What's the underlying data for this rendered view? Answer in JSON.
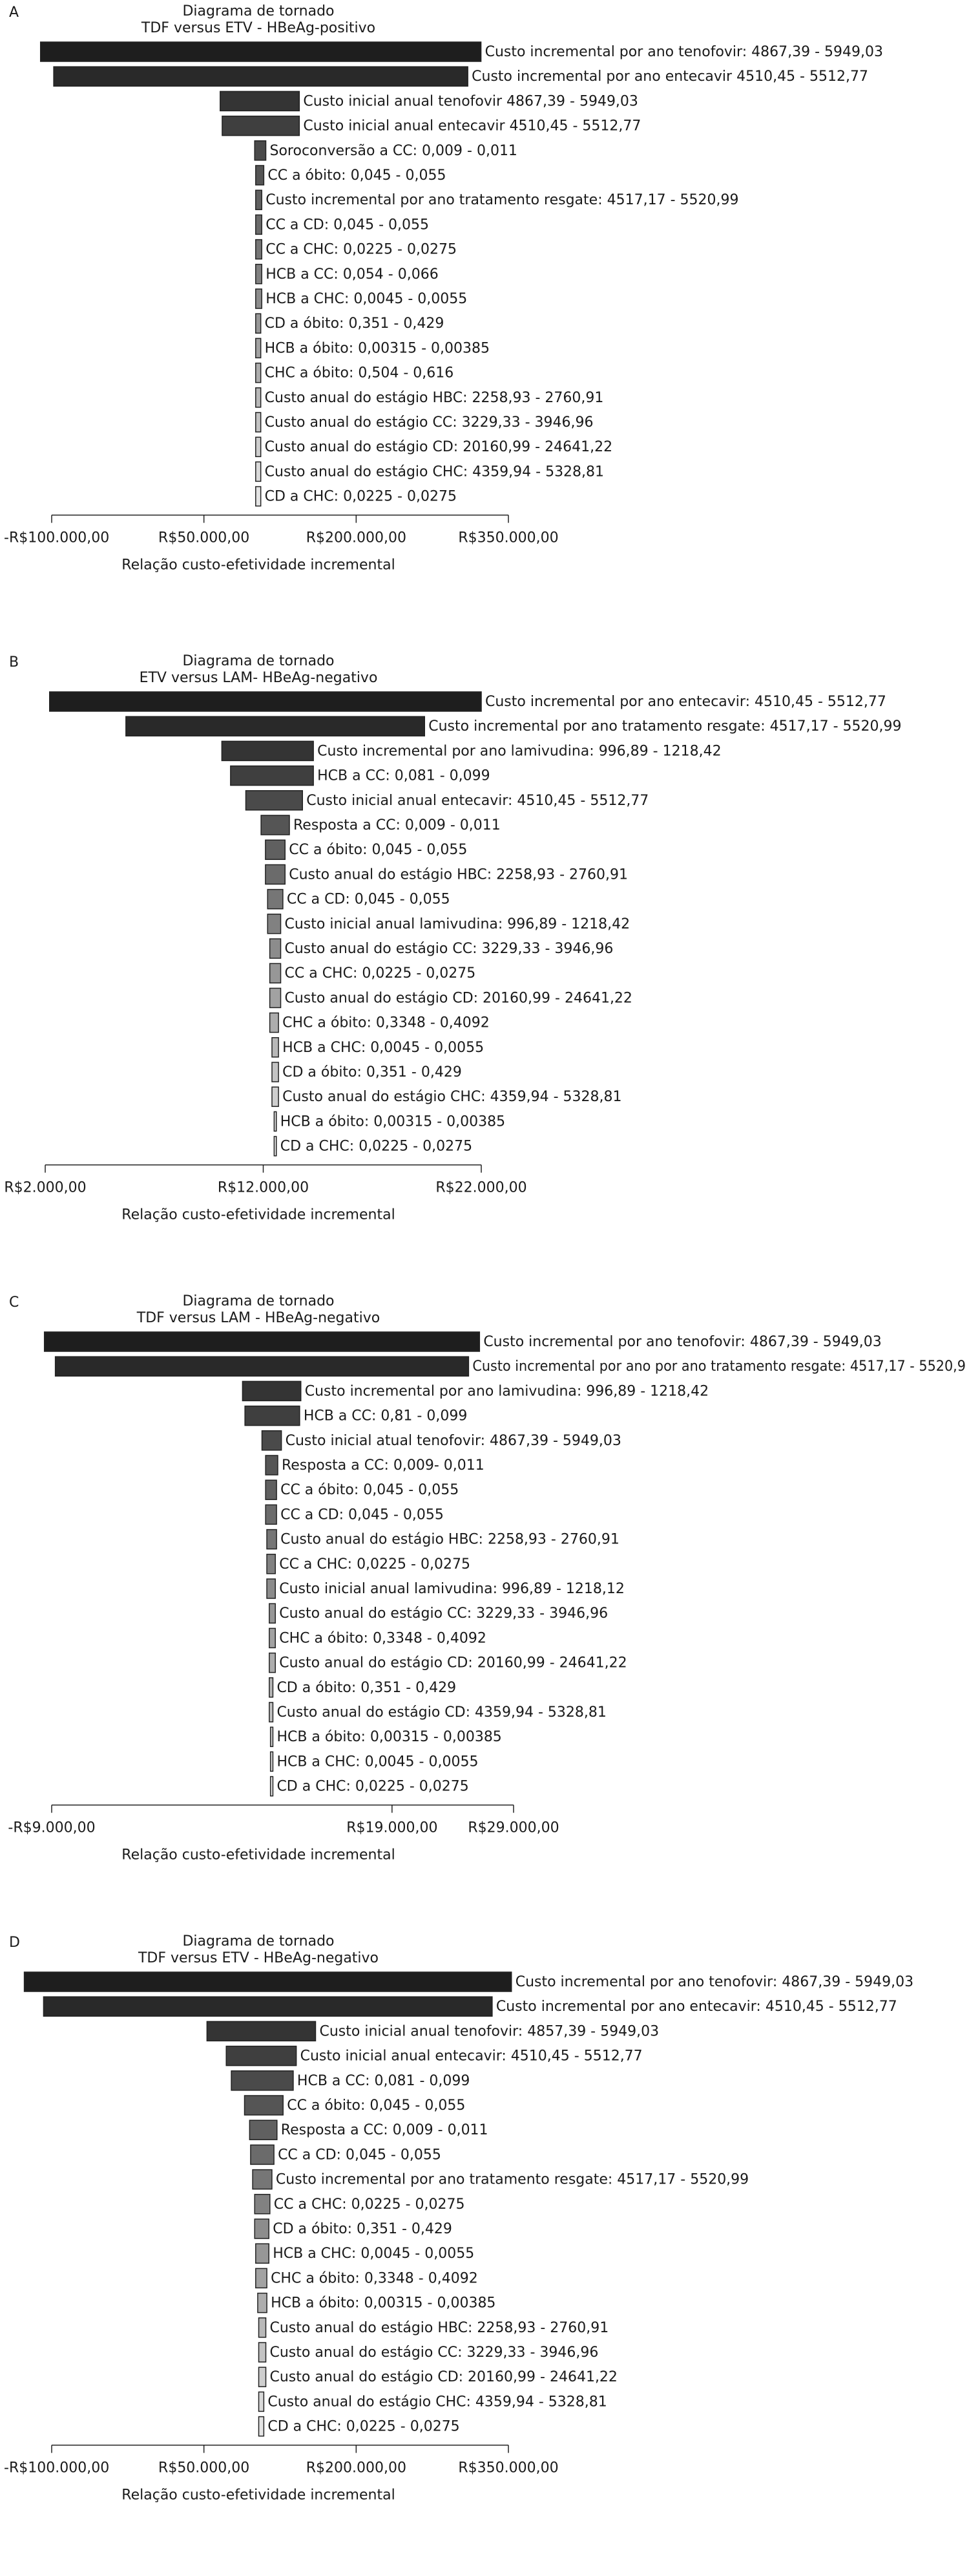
{
  "chart_data": [
    {
      "type": "tornado",
      "panel": "A",
      "title": "Diagrama de tornado",
      "subtitle": "TDF versus ETV - HBeAg-positivo",
      "xlabel": "Relação custo-efetividade incremental",
      "categories": [
        "Custo incremental por ano tenofovir: 4867,39 - 5949,03",
        "Custo incremental por ano entecavir 4510,45 - 5512,77",
        "Custo inicial anual tenofovir 4867,39 - 5949,03",
        "Custo inicial anual entecavir 4510,45 - 5512,77",
        "Soroconversão a CC: 0,009 - 0,011",
        "CC a óbito: 0,045 - 0,055",
        "Custo incremental por ano tratamento resgate: 4517,17 - 5520,99",
        "CC a CD: 0,045 - 0,055",
        "CC a CHC: 0,0225 - 0,0275",
        "HCB a CC: 0,054 - 0,066",
        "HCB a CHC: 0,0045 - 0,0055",
        "CD a óbito: 0,351 - 0,429",
        "HCB a óbito: 0,00315 - 0,00385",
        "CHC a óbito: 0,504 - 0,616",
        "Custo anual do estágio HBC: 2258,93 - 2760,91",
        "Custo anual do estágio CC: 3229,33 - 3946,96",
        "Custo anual do estágio CD: 20160,99 - 24641,22",
        "Custo anual do estágio CHC: 4359,94 - 5328,81",
        "CD a CHC: 0,0225 - 0,0275"
      ],
      "low": [
        -111000,
        -98000,
        66000,
        68000,
        100000,
        101000,
        101000,
        101000,
        101000,
        101000,
        101000,
        101000,
        101000,
        101000,
        101000,
        101000,
        101000,
        101000,
        101000
      ],
      "high": [
        323000,
        310000,
        144000,
        144000,
        111000,
        109000,
        107000,
        107000,
        107000,
        107000,
        107000,
        106000,
        106000,
        106000,
        106000,
        106000,
        106000,
        106000,
        106000
      ],
      "xlim": [
        -100000,
        350000
      ],
      "xticks": [
        {
          "value": -100000,
          "label": "-R$100.000,00"
        },
        {
          "value": 50000,
          "label": "R$50.000,00"
        },
        {
          "value": 200000,
          "label": "R$200.000,00"
        },
        {
          "value": 350000,
          "label": "R$350.000,00"
        }
      ],
      "colors": [
        "#1e1e1e",
        "#e4e4e4"
      ],
      "edge": "#222222"
    },
    {
      "type": "tornado",
      "panel": "B",
      "title": "Diagrama de tornado",
      "subtitle": "ETV versus LAM- HBeAg-negativo",
      "xlabel": "Relação custo-efetividade incremental",
      "categories": [
        "Custo incremental por ano entecavir: 4510,45 - 5512,77",
        "Custo incremental por ano tratamento resgate: 4517,17 - 5520,99",
        "Custo incremental por ano lamivudina: 996,89 - 1218,42",
        "HCB a CC: 0,081 - 0,099",
        "Custo inicial anual entecavir: 4510,45 - 5512,77",
        "Resposta a CC: 0,009 - 0,011",
        "CC a óbito: 0,045 - 0,055",
        "Custo anual do estágio HBC: 2258,93 - 2760,91",
        "CC a CD: 0,045 - 0,055",
        "Custo inicial anual lamivudina: 996,89 - 1218,42",
        "Custo anual do estágio CC: 3229,33 - 3946,96",
        "CC a CHC: 0,0225 - 0,0275",
        "Custo anual do estágio CD: 20160,99 - 24641,22",
        "CHC a óbito: 0,3348 - 0,4092",
        "HCB a CHC: 0,0045 - 0,0055",
        "CD a óbito: 0,351 - 0,429",
        "Custo anual do estágio CHC: 4359,94 - 5328,81",
        "HCB a óbito: 0,00315 - 0,00385",
        "CD a CHC: 0,0225 - 0,0275"
      ],
      "low": [
        2200,
        5700,
        10100,
        10500,
        11200,
        11900,
        12100,
        12100,
        12200,
        12200,
        12300,
        12300,
        12300,
        12300,
        12400,
        12400,
        12400,
        12500,
        12500
      ],
      "high": [
        22000,
        19400,
        14300,
        14300,
        13800,
        13200,
        13000,
        13000,
        12900,
        12800,
        12800,
        12800,
        12800,
        12700,
        12700,
        12700,
        12700,
        12600,
        12600
      ],
      "xlim": [
        2000,
        22000
      ],
      "xticks": [
        {
          "value": 2000,
          "label": "R$2.000,00"
        },
        {
          "value": 12000,
          "label": "R$12.000,00"
        },
        {
          "value": 22000,
          "label": "R$22.000,00"
        }
      ],
      "colors": [
        "#1e1e1e",
        "#e4e4e4"
      ],
      "edge": "#222222"
    },
    {
      "type": "tornado",
      "panel": "C",
      "title": "Diagrama de tornado",
      "subtitle": "TDF versus LAM - HBeAg-negativo",
      "xlabel": "Relação custo-efetividade incremental",
      "categories": [
        "Custo incremental por ano tenofovir: 4867,39 - 5949,03",
        "Custo incremental por ano por ano tratamento resgate: 4517,17 - 5520,9",
        "Custo incremental por ano lamivudina: 996,89 - 1218,42",
        "HCB a CC: 0,81 - 0,099",
        "Custo inicial atual tenofovir: 4867,39 - 5949,03",
        "Resposta a CC: 0,009- 0,011",
        "CC a óbito: 0,045 - 0,055",
        "CC a CD: 0,045 - 0,055",
        "Custo anual do estágio HBC: 2258,93 - 2760,91",
        "CC a CHC: 0,0225 - 0,0275",
        "Custo inicial anual lamivudina: 996,89 - 1218,12",
        "Custo anual do estágio CC: 3229,33 - 3946,96",
        "CHC a óbito: 0,3348 - 0,4092",
        "Custo anual do estágio CD: 20160,99 - 24641,22",
        "CD a óbito: 0,351 - 0,429",
        "Custo anual do estágio CD: 4359,94 - 5328,81",
        "HCB a óbito: 0,00315 - 0,00385",
        "HCB a CHC: 0,0045 - 0,0055",
        "CD a CHC: 0,0225 - 0,0275"
      ],
      "low": [
        -9600,
        -8700,
        6700,
        6900,
        8300,
        8600,
        8600,
        8600,
        8700,
        8700,
        8700,
        8900,
        8900,
        8900,
        8900,
        8900,
        9000,
        9000,
        9000
      ],
      "high": [
        26200,
        25300,
        11500,
        11400,
        9900,
        9600,
        9500,
        9500,
        9500,
        9400,
        9400,
        9400,
        9400,
        9400,
        9200,
        9200,
        9200,
        9200,
        9200
      ],
      "xlim": [
        -9000,
        29000
      ],
      "xticks": [
        {
          "value": -9000,
          "label": "-R$9.000,00"
        },
        {
          "value": 19000,
          "label": "R$19.000,00"
        },
        {
          "value": 29000,
          "label": "R$29.000,00"
        }
      ],
      "colors": [
        "#1e1e1e",
        "#e4e4e4"
      ],
      "edge": "#222222"
    },
    {
      "type": "tornado",
      "panel": "D",
      "title": "Diagrama de tornado",
      "subtitle": "TDF versus ETV - HBeAg-negativo",
      "xlabel": "Relação custo-efetividade incremental",
      "categories": [
        "Custo incremental por ano tenofovir: 4867,39 - 5949,03",
        "Custo incremental por ano entecavir: 4510,45 - 5512,77",
        "Custo inicial anual tenofovir: 4857,39 - 5949,03",
        "Custo inicial anual entecavir: 4510,45 - 5512,77",
        "HCB a CC: 0,081 - 0,099",
        "CC a óbito: 0,045 - 0,055",
        "Resposta a CC: 0,009 - 0,011",
        "CC a CD: 0,045 - 0,055",
        "Custo incremental por ano tratamento resgate: 4517,17 - 5520,99",
        "CC a CHC: 0,0225 - 0,0275",
        "CD a óbito: 0,351 - 0,429",
        "HCB a CHC: 0,0045 - 0,0055",
        "CHC a óbito: 0,3348 - 0,4092",
        "HCB a óbito: 0,00315 - 0,00385",
        "Custo anual do estágio HBC: 2258,93 - 2760,91",
        "Custo anual do estágio CC: 3229,33 - 3946,96",
        "Custo anual do estágio CD: 20160,99 - 24641,22",
        "Custo anual do estágio CHC: 4359,94 - 5328,81",
        "CD a CHC: 0,0225 - 0,0275"
      ],
      "low": [
        -127000,
        -108000,
        53000,
        72000,
        77000,
        90000,
        95000,
        96000,
        98000,
        100000,
        100000,
        101000,
        101000,
        103000,
        104000,
        104000,
        104000,
        104000,
        104000
      ],
      "high": [
        353000,
        334000,
        160000,
        141000,
        138000,
        128000,
        122000,
        119000,
        117000,
        115000,
        114000,
        114000,
        112000,
        112000,
        111000,
        111000,
        111000,
        109000,
        109000
      ],
      "xlim": [
        -100000,
        350000
      ],
      "xticks": [
        {
          "value": -100000,
          "label": "-R$100.000,00"
        },
        {
          "value": 50000,
          "label": "R$50.000,00"
        },
        {
          "value": 200000,
          "label": "R$200.000,00"
        },
        {
          "value": 350000,
          "label": "R$350.000,00"
        }
      ],
      "colors": [
        "#1e1e1e",
        "#e4e4e4"
      ],
      "edge": "#222222"
    }
  ]
}
